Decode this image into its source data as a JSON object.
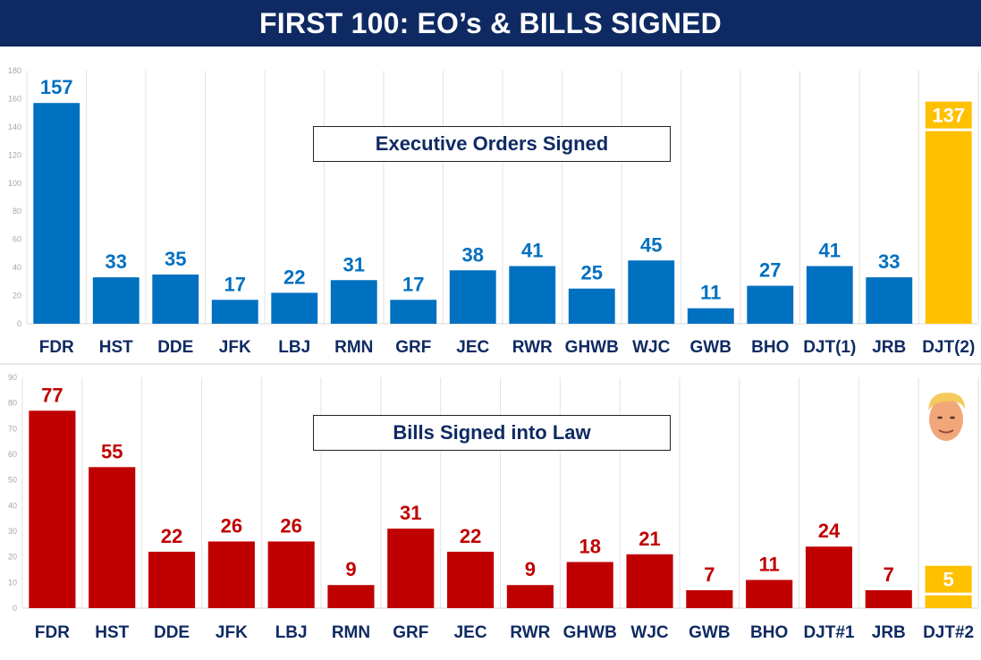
{
  "header": {
    "title": "FIRST 100: EO’s & BILLS SIGNED"
  },
  "colors": {
    "header_bg": "#0f2a63",
    "eo_bar": "#0070c0",
    "bill_bar": "#c00000",
    "highlight": "#ffc000",
    "title_text": "#0f2a63"
  },
  "chart_data": [
    {
      "type": "bar",
      "title": "Executive Orders Signed",
      "categories": [
        "FDR",
        "HST",
        "DDE",
        "JFK",
        "LBJ",
        "RMN",
        "GRF",
        "JEC",
        "RWR",
        "GHWB",
        "WJC",
        "GWB",
        "BHO",
        "DJT(1)",
        "JRB",
        "DJT(2)"
      ],
      "values": [
        157,
        33,
        35,
        17,
        22,
        31,
        17,
        38,
        41,
        25,
        45,
        11,
        27,
        41,
        33,
        137
      ],
      "highlight_category": "DJT(2)",
      "ylim": [
        0,
        180
      ],
      "yticks": [
        0,
        20,
        40,
        60,
        80,
        100,
        120,
        140,
        160,
        180
      ],
      "grid": "vertical separators"
    },
    {
      "type": "bar",
      "title": "Bills Signed into Law",
      "categories": [
        "FDR",
        "HST",
        "DDE",
        "JFK",
        "LBJ",
        "RMN",
        "GRF",
        "JEC",
        "RWR",
        "GHWB",
        "WJC",
        "GWB",
        "BHO",
        "DJT#1",
        "JRB",
        "DJT#2"
      ],
      "values": [
        77,
        55,
        22,
        26,
        26,
        9,
        31,
        22,
        9,
        18,
        21,
        7,
        11,
        24,
        7,
        5
      ],
      "highlight_category": "DJT#2",
      "ylim": [
        0,
        90
      ],
      "yticks": [
        0,
        10,
        20,
        30,
        40,
        50,
        60,
        70,
        80,
        90
      ],
      "grid": "vertical separators"
    }
  ]
}
